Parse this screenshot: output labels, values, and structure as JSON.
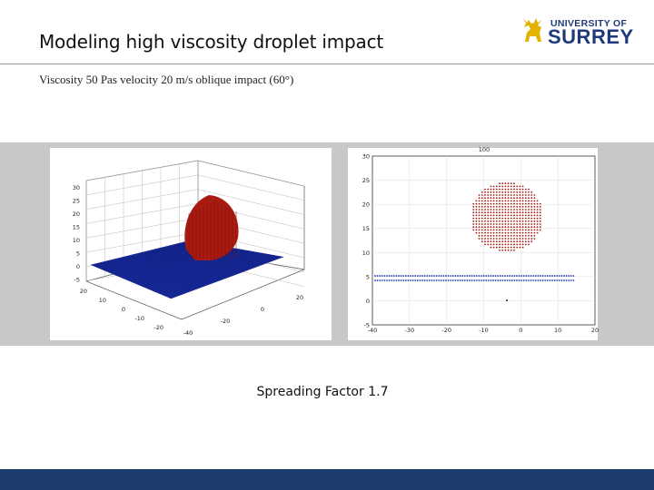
{
  "slide": {
    "title": "Modeling high viscosity droplet impact",
    "subtitle": "Viscosity 50 Pas velocity 20 m/s oblique impact (60°)",
    "caption": "Spreading Factor 1.7"
  },
  "logo": {
    "line1": "UNIVERSITY OF",
    "line2": "SURREY",
    "color": "#1f3a7a",
    "icon": "stag-icon"
  },
  "figure_3d": {
    "z_ticks": [
      "30",
      "25",
      "20",
      "15",
      "10",
      "5",
      "0",
      "-5"
    ],
    "y_ticks": [
      "20",
      "10",
      "0",
      "-10",
      "-20"
    ],
    "x_ticks": [
      "-40",
      "-20",
      "0",
      "20"
    ],
    "droplet_color": "#a81a12",
    "plate_color": "#1a2ea8"
  },
  "figure_2d": {
    "title": "100",
    "y_ticks": [
      "30",
      "25",
      "20",
      "15",
      "10",
      "5",
      "0",
      "-5"
    ],
    "x_ticks": [
      "-40",
      "-30",
      "-20",
      "-10",
      "0",
      "10",
      "20"
    ],
    "droplet_color": "#a81a12",
    "plate_color": "#1a2ea8"
  },
  "colors": {
    "background": "#ffffff",
    "figure_bg": "#c8c8c8",
    "footer": "#1c3d6e"
  }
}
